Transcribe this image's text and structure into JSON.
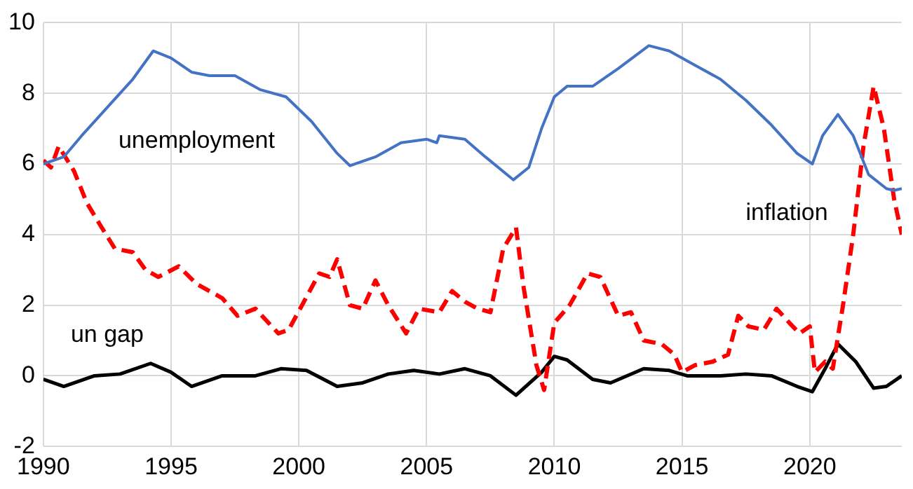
{
  "chart_data": {
    "type": "line",
    "xlim": [
      1990,
      2023.6
    ],
    "xticks": [
      1990,
      1995,
      2000,
      2005,
      2010,
      2015,
      2020
    ],
    "ylim": [
      -2,
      10
    ],
    "yticks": [
      -2,
      0,
      2,
      4,
      6,
      8,
      10
    ],
    "grid": true,
    "legend": false,
    "marker": "none",
    "series": [
      {
        "name": "unemployment",
        "color": "#4472c4",
        "line_style": "solid",
        "x": [
          1990,
          1990.8,
          1991.5,
          1992.5,
          1993.5,
          1994.3,
          1995,
          1995.8,
          1996.5,
          1997.5,
          1998.5,
          1999.5,
          2000.5,
          2001.5,
          2002,
          2003,
          2004,
          2005,
          2005.4,
          2005.5,
          2006.5,
          2007.3,
          2008.4,
          2009,
          2009.5,
          2010,
          2010.5,
          2011.5,
          2012.5,
          2013.7,
          2014.5,
          2015.5,
          2016.5,
          2017.5,
          2018.5,
          2019.5,
          2020.1,
          2020.5,
          2021.1,
          2021.7,
          2022.3,
          2023,
          2023.3,
          2023.6
        ],
        "values": [
          6.0,
          6.2,
          6.8,
          7.6,
          8.4,
          9.2,
          9.0,
          8.6,
          8.5,
          8.5,
          8.1,
          7.9,
          7.2,
          6.3,
          5.95,
          6.2,
          6.6,
          6.7,
          6.6,
          6.8,
          6.7,
          6.2,
          5.55,
          5.9,
          7.0,
          7.9,
          8.2,
          8.2,
          8.7,
          9.35,
          9.2,
          8.8,
          8.4,
          7.8,
          7.1,
          6.3,
          6.0,
          6.8,
          7.4,
          6.8,
          5.7,
          5.3,
          5.25,
          5.3
        ]
      },
      {
        "name": "inflation",
        "color": "#ff0000",
        "line_style": "dashed",
        "x": [
          1990,
          1990.3,
          1990.6,
          1991.2,
          1991.7,
          1992.2,
          1992.8,
          1993.5,
          1994,
          1994.5,
          1995.3,
          1996,
          1997,
          1997.6,
          1998.3,
          1999.2,
          1999.6,
          2000.2,
          2000.8,
          2001.2,
          2001.5,
          2002,
          2002.5,
          2003,
          2003.5,
          2004.2,
          2004.7,
          2005.5,
          2006,
          2006.5,
          2007,
          2007.5,
          2008,
          2008.5,
          2008.8,
          2009.3,
          2009.6,
          2010,
          2010.6,
          2011.3,
          2011.8,
          2012.5,
          2013,
          2013.5,
          2014.2,
          2014.7,
          2015,
          2015.5,
          2016.2,
          2016.8,
          2017.2,
          2017.6,
          2018.2,
          2018.7,
          2019.2,
          2019.6,
          2020,
          2020.2,
          2020.6,
          2020.9,
          2021.3,
          2021.7,
          2022.1,
          2022.5,
          2022.9,
          2023.3,
          2023.6
        ],
        "values": [
          6.1,
          5.9,
          6.5,
          5.8,
          4.9,
          4.3,
          3.6,
          3.5,
          3.0,
          2.8,
          3.1,
          2.6,
          2.2,
          1.7,
          1.9,
          1.2,
          1.3,
          2.1,
          2.9,
          2.8,
          3.3,
          2.0,
          1.9,
          2.7,
          2.0,
          1.2,
          1.9,
          1.8,
          2.4,
          2.1,
          1.9,
          1.8,
          3.6,
          4.2,
          2.5,
          0.3,
          -0.4,
          1.5,
          2.0,
          2.9,
          2.8,
          1.7,
          1.8,
          1.0,
          0.9,
          0.6,
          0.1,
          0.3,
          0.4,
          0.6,
          1.7,
          1.4,
          1.3,
          1.9,
          1.5,
          1.2,
          1.4,
          0.1,
          0.4,
          0.2,
          2.0,
          4.0,
          6.5,
          8.2,
          7.0,
          5.0,
          4.0
        ]
      },
      {
        "name": "un gap",
        "color": "#000000",
        "line_style": "solid",
        "x": [
          1990,
          1990.8,
          1992,
          1993,
          1994.2,
          1995,
          1995.8,
          1997,
          1998.3,
          1999.3,
          2000.3,
          2001.5,
          2002.5,
          2003.5,
          2004.5,
          2005.5,
          2006.5,
          2007.5,
          2008.5,
          2009.5,
          2010,
          2010.5,
          2011.5,
          2012.2,
          2013.5,
          2014.5,
          2015.2,
          2016.5,
          2017.5,
          2018.5,
          2019.5,
          2020.1,
          2020.6,
          2021.1,
          2021.8,
          2022.5,
          2023,
          2023.6
        ],
        "values": [
          -0.1,
          -0.3,
          0.0,
          0.05,
          0.35,
          0.1,
          -0.3,
          0.0,
          0.0,
          0.2,
          0.15,
          -0.3,
          -0.2,
          0.05,
          0.15,
          0.05,
          0.2,
          0.0,
          -0.55,
          0.1,
          0.55,
          0.45,
          -0.1,
          -0.2,
          0.2,
          0.15,
          0.0,
          0.0,
          0.05,
          0.0,
          -0.3,
          -0.45,
          0.2,
          0.9,
          0.4,
          -0.35,
          -0.3,
          0.0
        ]
      }
    ]
  }
}
